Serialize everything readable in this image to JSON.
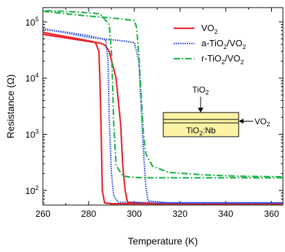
{
  "chart_data": {
    "type": "line",
    "title": "",
    "xlabel": "Temperature (K)",
    "ylabel": "Resistance (Ω)",
    "xlim": [
      260,
      365
    ],
    "ylim": [
      55,
      180000
    ],
    "yscale": "log",
    "x_ticks": [
      {
        "v": 260,
        "label": "260"
      },
      {
        "v": 280,
        "label": "280"
      },
      {
        "v": 300,
        "label": "300"
      },
      {
        "v": 320,
        "label": "320"
      },
      {
        "v": 340,
        "label": "340"
      },
      {
        "v": 360,
        "label": "360"
      }
    ],
    "y_ticks": [
      {
        "v": 100,
        "base": "10",
        "exp": "2"
      },
      {
        "v": 1000,
        "base": "10",
        "exp": "3"
      },
      {
        "v": 10000,
        "base": "10",
        "exp": "4"
      },
      {
        "v": 100000,
        "base": "10",
        "exp": "5"
      }
    ],
    "grid": false,
    "legend_position": "top-right",
    "series": [
      {
        "name_main": "VO",
        "name_sub": "2",
        "name_tail": "",
        "color": "#e8232b",
        "dash": "solid",
        "heating": [
          [
            260,
            65000
          ],
          [
            270,
            55000
          ],
          [
            280,
            46000
          ],
          [
            285,
            42000
          ],
          [
            287,
            39000
          ],
          [
            289,
            30000
          ],
          [
            292,
            10000
          ],
          [
            294,
            1500
          ],
          [
            295,
            250
          ],
          [
            296,
            100
          ],
          [
            297,
            62
          ],
          [
            310,
            58
          ],
          [
            340,
            58
          ],
          [
            365,
            58
          ]
        ],
        "cooling": [
          [
            365,
            58
          ],
          [
            320,
            58
          ],
          [
            300,
            58
          ],
          [
            290,
            58
          ],
          [
            287,
            60
          ],
          [
            286,
            100
          ],
          [
            285.5,
            1000
          ],
          [
            285,
            8000
          ],
          [
            284.5,
            30000
          ],
          [
            283,
            43000
          ],
          [
            270,
            52000
          ],
          [
            260,
            60000
          ]
        ]
      },
      {
        "name_main": "a-TiO",
        "name_sub": "2",
        "name_tail": "/VO",
        "name_sub2": "2",
        "color": "#2745d6",
        "dash": "dotted",
        "heating": [
          [
            260,
            76000
          ],
          [
            270,
            64000
          ],
          [
            280,
            53000
          ],
          [
            295,
            46000
          ],
          [
            300,
            43000
          ],
          [
            302,
            20000
          ],
          [
            303,
            3000
          ],
          [
            304,
            500
          ],
          [
            305,
            120
          ],
          [
            306,
            65
          ],
          [
            315,
            60
          ],
          [
            340,
            60
          ],
          [
            365,
            60
          ]
        ],
        "cooling": [
          [
            365,
            60
          ],
          [
            320,
            60
          ],
          [
            300,
            61
          ],
          [
            293,
            62
          ],
          [
            291,
            80
          ],
          [
            290,
            200
          ],
          [
            289,
            2000
          ],
          [
            288.5,
            20000
          ],
          [
            287.5,
            48000
          ],
          [
            280,
            57000
          ],
          [
            270,
            66000
          ],
          [
            260,
            74000
          ]
        ]
      },
      {
        "name_main": "r-TiO",
        "name_sub": "2",
        "name_tail": "/VO",
        "name_sub2": "2",
        "color": "#21b14c",
        "dash": "dashdot",
        "heating": [
          [
            260,
            155000
          ],
          [
            270,
            140000
          ],
          [
            280,
            127000
          ],
          [
            290,
            118000
          ],
          [
            300,
            106000
          ],
          [
            301,
            80000
          ],
          [
            302,
            25000
          ],
          [
            303,
            5000
          ],
          [
            304,
            1000
          ],
          [
            305,
            450
          ],
          [
            308,
            270
          ],
          [
            315,
            210
          ],
          [
            330,
            190
          ],
          [
            345,
            180
          ],
          [
            365,
            175
          ]
        ],
        "cooling": [
          [
            365,
            168
          ],
          [
            330,
            168
          ],
          [
            310,
            168
          ],
          [
            300,
            170
          ],
          [
            295,
            180
          ],
          [
            292,
            280
          ],
          [
            291,
            1500
          ],
          [
            290.5,
            8000
          ],
          [
            290,
            30000
          ],
          [
            289,
            90000
          ],
          [
            285,
            140000
          ],
          [
            275,
            150000
          ],
          [
            260,
            160000
          ]
        ]
      }
    ],
    "inset": {
      "top_label_main": "TiO",
      "top_label_sub": "2",
      "right_label_main": "VO",
      "right_label_sub": "2",
      "substrate_label_main": "TiO",
      "substrate_label_sub": "2",
      "substrate_label_tail": ":Nb",
      "fill_color": "#fdf3a4"
    }
  }
}
